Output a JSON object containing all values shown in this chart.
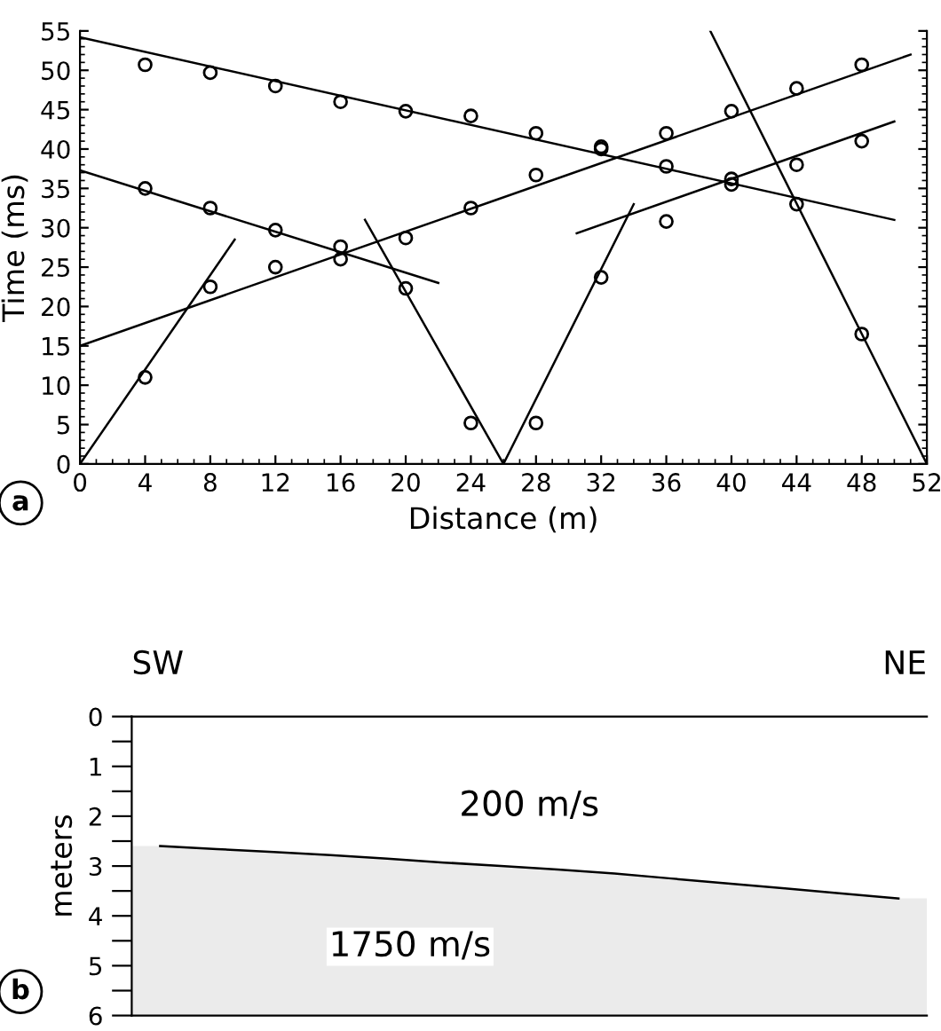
{
  "chart_data": [
    {
      "type": "scatter",
      "xlabel": "Distance (m)",
      "ylabel": "Time (ms)",
      "annotations": [
        "a"
      ],
      "xlim": [
        0,
        52
      ],
      "xticks": [
        0,
        4,
        8,
        12,
        16,
        20,
        24,
        28,
        32,
        36,
        40,
        44,
        48,
        52
      ],
      "ylim": [
        0,
        55
      ],
      "yticks": [
        0,
        5,
        10,
        15,
        20,
        25,
        30,
        35,
        40,
        45,
        50,
        55
      ],
      "grid": false,
      "legend": false,
      "series": [
        {
          "color": "#000000",
          "marker": "circle",
          "x": [
            4,
            8,
            12,
            16,
            20,
            24,
            28,
            32,
            36,
            40,
            44,
            48
          ],
          "values": [
            11,
            22.5,
            25,
            26,
            28.7,
            32.5,
            36.7,
            40,
            42,
            44.8,
            47.7,
            50.7
          ]
        },
        {
          "color": "#000000",
          "marker": "circle",
          "x": [
            4,
            8,
            12,
            16,
            20,
            24,
            28,
            32,
            36,
            40,
            44,
            48
          ],
          "values": [
            50.7,
            49.7,
            48,
            46,
            44.8,
            44.2,
            42,
            40.3,
            37.8,
            35.5,
            33,
            16.5
          ]
        },
        {
          "color": "#000000",
          "marker": "circle",
          "x": [
            4,
            8,
            12,
            16,
            20,
            24,
            28,
            32,
            36,
            40,
            44,
            48
          ],
          "values": [
            35,
            32.5,
            29.7,
            27.6,
            22.3,
            5.2,
            5.2,
            23.7,
            30.8,
            36.2,
            38,
            41
          ]
        },
        {
          "type": "line",
          "color": "#000000",
          "x": [
            0,
            9.5
          ],
          "values": [
            0,
            28.5
          ]
        },
        {
          "type": "line",
          "color": "#000000",
          "x": [
            0,
            51
          ],
          "values": [
            15,
            52
          ]
        },
        {
          "type": "line",
          "color": "#000000",
          "x": [
            0,
            50
          ],
          "values": [
            54.2,
            31
          ]
        },
        {
          "type": "line",
          "color": "#000000",
          "x": [
            38.7,
            52
          ],
          "values": [
            55,
            0
          ]
        },
        {
          "type": "line",
          "color": "#000000",
          "x": [
            17.5,
            26,
            34
          ],
          "values": [
            31,
            0,
            33
          ]
        },
        {
          "type": "line",
          "color": "#000000",
          "x": [
            0,
            22
          ],
          "values": [
            37.3,
            23
          ]
        },
        {
          "type": "line",
          "color": "#000000",
          "x": [
            30.5,
            50
          ],
          "values": [
            29.3,
            43.5
          ]
        }
      ]
    },
    {
      "type": "line",
      "ylabel": "meters",
      "annotations": [
        "b",
        "SW",
        "NE",
        "200 m/s",
        "1750 m/s"
      ],
      "categories": [
        null,
        null,
        null,
        null,
        null,
        null,
        null,
        null,
        null,
        null,
        null,
        null,
        null,
        null
      ],
      "ylim": [
        6,
        0
      ],
      "yticks": [
        0,
        {
          "value": 0.5,
          "label": null
        },
        1,
        {
          "value": 1.5,
          "label": null
        },
        2,
        {
          "value": 2.5,
          "label": null
        },
        3,
        {
          "value": 3.5,
          "label": null
        },
        4,
        {
          "value": 4.5,
          "label": null
        },
        5,
        {
          "value": 5.5,
          "label": null
        },
        6
      ],
      "tick_labels": "y",
      "grid": false,
      "legend": false,
      "series": [
        {
          "color": "#000000",
          "values": [
            2.6,
            2.66,
            2.72,
            2.78,
            2.85,
            2.93,
            3.0,
            3.07,
            3.15,
            3.25,
            3.35,
            3.45,
            3.55,
            3.65
          ]
        }
      ]
    }
  ]
}
